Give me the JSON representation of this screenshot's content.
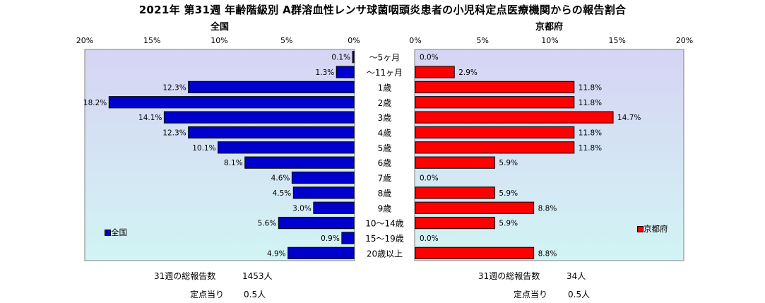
{
  "title": "2021年 第31週 年齢階級別 A群溶血性レンサ球菌咽頭炎患者の小児科定点医療機関からの報告割合",
  "colors": {
    "national": "#0000cc",
    "kyoto": "#ff0000",
    "plot_bg_top": "#d6d4f4",
    "plot_bg_bottom": "#d2f4f4"
  },
  "chart_data": [
    {
      "type": "bar",
      "orientation": "horizontal",
      "direction": "right-to-left",
      "title": "全国",
      "categories": [
        "～5ヶ月",
        "～11ヶ月",
        "1歳",
        "2歳",
        "3歳",
        "4歳",
        "5歳",
        "6歳",
        "7歳",
        "8歳",
        "9歳",
        "10～14歳",
        "15～19歳",
        "20歳以上"
      ],
      "series": [
        {
          "name": "全国",
          "values": [
            0.1,
            1.3,
            12.3,
            18.2,
            14.1,
            12.3,
            10.1,
            8.1,
            4.6,
            4.5,
            3.0,
            5.6,
            0.9,
            4.9
          ]
        }
      ],
      "value_labels": [
        "0.1%",
        "1.3%",
        "12.3%",
        "18.2%",
        "14.1%",
        "12.3%",
        "10.1%",
        "8.1%",
        "4.6%",
        "4.5%",
        "3.0%",
        "5.6%",
        "0.9%",
        "4.9%"
      ],
      "xlim": [
        0,
        20
      ],
      "xticks": [
        "20%",
        "15%",
        "10%",
        "5%",
        "0%"
      ],
      "legend": "bottom-left"
    },
    {
      "type": "bar",
      "orientation": "horizontal",
      "direction": "left-to-right",
      "title": "京都府",
      "categories": [
        "～5ヶ月",
        "～11ヶ月",
        "1歳",
        "2歳",
        "3歳",
        "4歳",
        "5歳",
        "6歳",
        "7歳",
        "8歳",
        "9歳",
        "10～14歳",
        "15～19歳",
        "20歳以上"
      ],
      "series": [
        {
          "name": "京都府",
          "values": [
            0.0,
            2.9,
            11.8,
            11.8,
            14.7,
            11.8,
            11.8,
            5.9,
            0.0,
            5.9,
            8.8,
            5.9,
            0.0,
            8.8
          ]
        }
      ],
      "value_labels": [
        "0.0%",
        "2.9%",
        "11.8%",
        "11.8%",
        "14.7%",
        "11.8%",
        "11.8%",
        "5.9%",
        "0.0%",
        "5.9%",
        "8.8%",
        "5.9%",
        "0.0%",
        "8.8%"
      ],
      "xlim": [
        0,
        20
      ],
      "xticks": [
        "0%",
        "5%",
        "10%",
        "15%",
        "20%"
      ],
      "legend": "bottom-right"
    }
  ],
  "footer": {
    "national": {
      "total_label": "31週の総報告数",
      "total_value": "1453人",
      "per_label": "定点当り",
      "per_value": "0.5人"
    },
    "kyoto": {
      "total_label": "31週の総報告数",
      "total_value": "34人",
      "per_label": "定点当り",
      "per_value": "0.5人"
    }
  }
}
